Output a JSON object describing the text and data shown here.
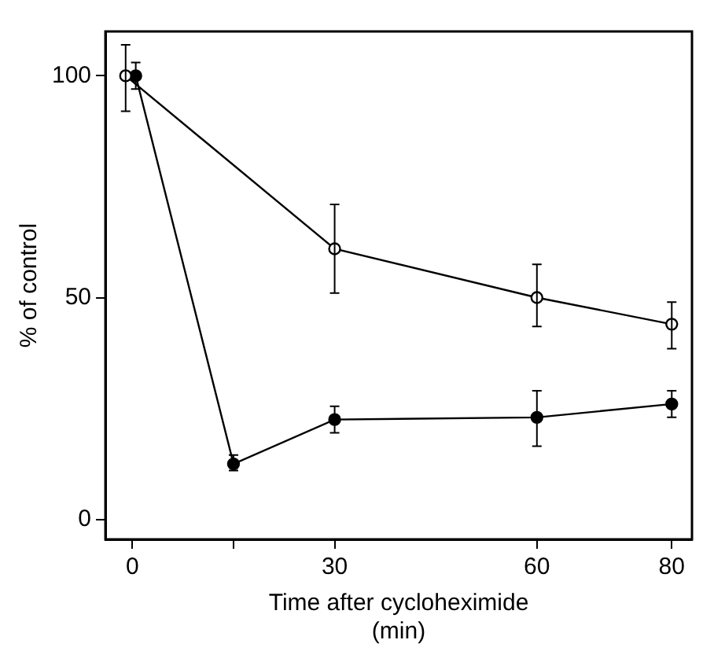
{
  "chart_data": {
    "type": "line",
    "xlabel": "Time after cycloheximide\n(min)",
    "ylabel": "% of control",
    "xlim": [
      -4,
      83
    ],
    "xticks": [
      0,
      {
        "value": 15,
        "label": null
      },
      30,
      60,
      80
    ],
    "ylim": [
      -4.5,
      110
    ],
    "yticks": [
      0,
      50,
      100
    ],
    "grid": false,
    "legend": false,
    "marker": "circle",
    "line_style": "solid",
    "series": [
      {
        "color": "#000000",
        "x": [
          -1,
          30,
          60,
          80
        ],
        "values": [
          100,
          61,
          50,
          44
        ],
        "errors": [
          [
            92,
            107
          ],
          [
            51,
            71
          ],
          [
            43.5,
            57.5
          ],
          [
            38.5,
            49
          ]
        ]
      },
      {
        "color": "#000000",
        "x": [
          0.5,
          15,
          30,
          60,
          80
        ],
        "values": [
          100,
          12.5,
          22.5,
          23,
          26
        ],
        "errors": [
          [
            97,
            103
          ],
          [
            11,
            14.5
          ],
          [
            19.5,
            25.5
          ],
          [
            16.5,
            29
          ],
          [
            23,
            29
          ]
        ]
      }
    ]
  }
}
